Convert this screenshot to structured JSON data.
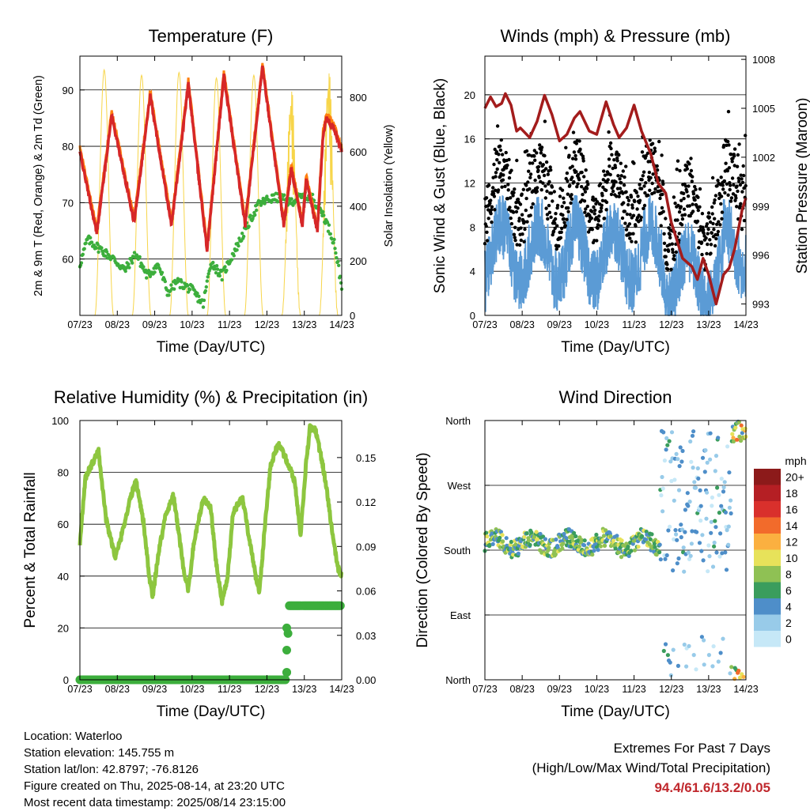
{
  "time_ticks": [
    "07/23",
    "08/23",
    "09/23",
    "10/23",
    "11/23",
    "12/23",
    "13/23",
    "14/23"
  ],
  "xlabel": "Time (Day/UTC)",
  "chart_data": [
    {
      "type": "line",
      "title": "Temperature (F)",
      "xlabel": "Time (Day/UTC)",
      "ylabel": "2m & 9m T (Red, Orange) & 2m Td (Green)",
      "ylabel_right": "Solar Insolation (Yellow)",
      "ylim": [
        50,
        96
      ],
      "ylim_right": [
        0,
        950
      ],
      "yticks": [
        60,
        70,
        80,
        90
      ],
      "yticks_right": [
        0,
        200,
        400,
        600,
        800
      ],
      "x_days": [
        0,
        7
      ],
      "series": [
        {
          "color": "#d62728",
          "temp_2m_daily": [
            [
              0.0,
              79
            ],
            [
              0.45,
              64.5
            ],
            [
              0.85,
              85.5
            ],
            [
              1.45,
              66.5
            ],
            [
              1.88,
              89
            ],
            [
              2.45,
              66
            ],
            [
              2.9,
              91
            ],
            [
              3.4,
              61.5
            ],
            [
              3.85,
              92.5
            ],
            [
              4.42,
              66
            ],
            [
              4.88,
              94
            ],
            [
              5.45,
              66
            ],
            [
              5.65,
              76
            ],
            [
              5.95,
              66
            ],
            [
              6.05,
              74
            ],
            [
              6.35,
              65
            ],
            [
              6.5,
              82
            ],
            [
              6.6,
              85
            ],
            [
              6.8,
              83
            ],
            [
              7.0,
              79
            ]
          ]
        },
        {
          "color": "#ff7f0e",
          "temp_9m_offset": 0.8
        },
        {
          "color": "#3cae3c",
          "dewpoint_points": [
            [
              0,
              59
            ],
            [
              0.2,
              63.5
            ],
            [
              0.5,
              62
            ],
            [
              0.9,
              60
            ],
            [
              1.2,
              58
            ],
            [
              1.5,
              61
            ],
            [
              1.8,
              57
            ],
            [
              2.1,
              59
            ],
            [
              2.35,
              54
            ],
            [
              2.6,
              56
            ],
            [
              3.0,
              54.5
            ],
            [
              3.3,
              52
            ],
            [
              3.5,
              59.5
            ],
            [
              3.8,
              57
            ],
            [
              4.1,
              61
            ],
            [
              4.45,
              65.5
            ],
            [
              4.75,
              69.5
            ],
            [
              5.0,
              70.5
            ],
            [
              5.35,
              71
            ],
            [
              5.6,
              70
            ],
            [
              5.9,
              71
            ],
            [
              6.2,
              71
            ],
            [
              6.5,
              68
            ],
            [
              6.8,
              63
            ],
            [
              7.0,
              55
            ]
          ]
        },
        {
          "color": "#f7d549",
          "solar_peak": [
            900,
            880,
            890,
            870,
            880,
            860,
            930,
            920
          ]
        }
      ]
    },
    {
      "type": "line",
      "title": "Winds (mph) & Pressure (mb)",
      "xlabel": "Time (Day/UTC)",
      "ylabel": "Sonic Wind & Gust (Blue, Black)",
      "ylabel_right": "Station Pressure (Maroon)",
      "ylim": [
        0,
        23.5
      ],
      "ylim_right": [
        992.3,
        1008.2
      ],
      "yticks": [
        0,
        4,
        8,
        12,
        16,
        20
      ],
      "yticks_right": [
        993,
        996,
        999,
        1002,
        1005,
        1008
      ],
      "series": [
        {
          "name": "pressure",
          "color": "#a31c1c",
          "values": [
            [
              0,
              1005.0
            ],
            [
              0.15,
              1005.7
            ],
            [
              0.3,
              1005.1
            ],
            [
              0.45,
              1005.3
            ],
            [
              0.55,
              1005.9
            ],
            [
              0.7,
              1005.2
            ],
            [
              0.85,
              1003.6
            ],
            [
              0.95,
              1003.8
            ],
            [
              1.2,
              1003.2
            ],
            [
              1.4,
              1004.2
            ],
            [
              1.6,
              1005.8
            ],
            [
              1.8,
              1004.6
            ],
            [
              2.0,
              1003.0
            ],
            [
              2.2,
              1003.4
            ],
            [
              2.4,
              1004.4
            ],
            [
              2.55,
              1004.8
            ],
            [
              2.8,
              1003.6
            ],
            [
              3.0,
              1003.4
            ],
            [
              3.25,
              1005.4
            ],
            [
              3.45,
              1004.0
            ],
            [
              3.6,
              1003.2
            ],
            [
              3.8,
              1003.8
            ],
            [
              4.0,
              1005.2
            ],
            [
              4.2,
              1003.6
            ],
            [
              4.45,
              1002.2
            ],
            [
              4.65,
              1000.4
            ],
            [
              4.85,
              999.8
            ],
            [
              5.0,
              998.0
            ],
            [
              5.3,
              995.8
            ],
            [
              5.55,
              995.3
            ],
            [
              5.7,
              994.5
            ],
            [
              5.85,
              995.8
            ],
            [
              6.0,
              994.8
            ],
            [
              6.2,
              993.0
            ],
            [
              6.4,
              994.8
            ],
            [
              6.55,
              995.2
            ],
            [
              6.7,
              996.4
            ],
            [
              6.9,
              998.8
            ],
            [
              7.0,
              999.5
            ]
          ]
        }
      ]
    },
    {
      "type": "line",
      "title": "Relative Humidity (%) & Precipitation (in)",
      "xlabel": "Time (Day/UTC)",
      "ylabel": "Percent & Total Rainfall",
      "ylim": [
        0,
        100
      ],
      "ylim_right": [
        0,
        0.175
      ],
      "yticks": [
        0,
        20,
        40,
        60,
        80,
        100
      ],
      "yticks_right": [
        "0.00",
        "0.03",
        "0.06",
        "0.09",
        "0.12",
        "0.15"
      ],
      "series": [
        {
          "name": "rh",
          "color": "#8dc63f",
          "values": [
            [
              0,
              53
            ],
            [
              0.15,
              78
            ],
            [
              0.35,
              84
            ],
            [
              0.5,
              88
            ],
            [
              0.7,
              62
            ],
            [
              0.95,
              47
            ],
            [
              1.1,
              55
            ],
            [
              1.35,
              70
            ],
            [
              1.5,
              77
            ],
            [
              1.7,
              61
            ],
            [
              1.85,
              40
            ],
            [
              1.95,
              32
            ],
            [
              2.1,
              49
            ],
            [
              2.3,
              64
            ],
            [
              2.5,
              71
            ],
            [
              2.65,
              56
            ],
            [
              2.8,
              39
            ],
            [
              2.9,
              35
            ],
            [
              3.05,
              53
            ],
            [
              3.3,
              70
            ],
            [
              3.5,
              66
            ],
            [
              3.65,
              44
            ],
            [
              3.8,
              30
            ],
            [
              3.95,
              40
            ],
            [
              4.1,
              65
            ],
            [
              4.35,
              70
            ],
            [
              4.5,
              57
            ],
            [
              4.7,
              40
            ],
            [
              4.8,
              34
            ],
            [
              4.95,
              60
            ],
            [
              5.1,
              83
            ],
            [
              5.3,
              91
            ],
            [
              5.45,
              87
            ],
            [
              5.6,
              82
            ],
            [
              5.75,
              76
            ],
            [
              5.9,
              56
            ],
            [
              6.05,
              84
            ],
            [
              6.15,
              97
            ],
            [
              6.3,
              96
            ],
            [
              6.45,
              86
            ],
            [
              6.6,
              74
            ],
            [
              6.75,
              56
            ],
            [
              6.9,
              43
            ],
            [
              7.0,
              40
            ]
          ]
        },
        {
          "name": "precip",
          "color": "#3cae3c",
          "values": [
            [
              0,
              0
            ],
            [
              5.53,
              0
            ],
            [
              5.53,
              0.005
            ],
            [
              5.55,
              0.02
            ],
            [
              5.57,
              0.035
            ],
            [
              5.6,
              0.05
            ],
            [
              7.0,
              0.05
            ]
          ]
        }
      ]
    },
    {
      "type": "scatter",
      "title": "Wind Direction",
      "xlabel": "Time (Day/UTC)",
      "ylabel": "Direction (Colored By Speed)",
      "yticks": [
        "North",
        "East",
        "South",
        "West",
        "North"
      ],
      "legend_title": "mph",
      "legend_labels": [
        "0",
        "2",
        "4",
        "6",
        "8",
        "10",
        "12",
        "14",
        "16",
        "18",
        "20+"
      ],
      "legend_colors": [
        "#c6e8f7",
        "#98cbe9",
        "#4e8ec9",
        "#3a9d5d",
        "#8fc154",
        "#e7e25a",
        "#fbb040",
        "#f26b2b",
        "#d9302c",
        "#b51f24",
        "#8c1a1a"
      ]
    }
  ],
  "station_info": {
    "location": "Location: Waterloo",
    "elevation": "Station elevation: 145.755 m",
    "latlon": "Station lat/lon: 42.8797; -76.8126",
    "created": "Figure created on Thu, 2025-08-14, at 23:20 UTC",
    "recent": "Most recent data timestamp: 2025/08/14 23:15:00"
  },
  "extremes": {
    "title": "Extremes For Past 7 Days",
    "subtitle": "(High/Low/Max Wind/Total Precipitation)",
    "values": "94.4/61.6/13.2/0.05"
  }
}
